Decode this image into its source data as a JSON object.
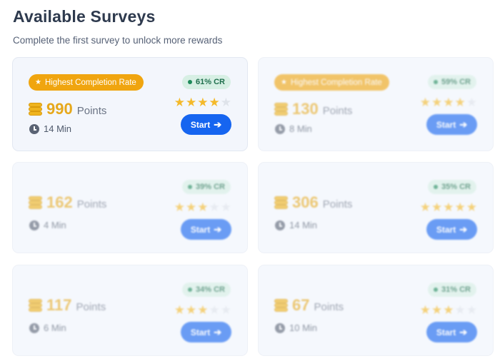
{
  "header": {
    "title": "Available Surveys",
    "subtitle": "Complete the first survey to unlock more rewards"
  },
  "colors": {
    "accent": "#1665f0",
    "badge": "#f0a50f",
    "points": "#e6a81b",
    "cr_badge_bg": "#d7efe4",
    "star": "#f4b92a"
  },
  "icons": {
    "badge": "star-icon",
    "points": "coins-icon",
    "time": "clock-icon",
    "start": "arrow-right-icon"
  },
  "surveys": [
    {
      "badge": "Highest Completion Rate",
      "points": "990",
      "points_label": "Points",
      "time": "14 Min",
      "cr": "61% CR",
      "stars": 4,
      "button": "Start",
      "locked": false
    },
    {
      "badge": "Highest Completion Rate",
      "points": "130",
      "points_label": "Points",
      "time": "8 Min",
      "cr": "59% CR",
      "stars": 4,
      "button": "Start",
      "locked": true
    },
    {
      "badge": "",
      "points": "162",
      "points_label": "Points",
      "time": "4 Min",
      "cr": "39% CR",
      "stars": 3,
      "button": "Start",
      "locked": true
    },
    {
      "badge": "",
      "points": "306",
      "points_label": "Points",
      "time": "14 Min",
      "cr": "35% CR",
      "stars": 5,
      "button": "Start",
      "locked": true
    },
    {
      "badge": "",
      "points": "117",
      "points_label": "Points",
      "time": "6 Min",
      "cr": "34% CR",
      "stars": 3,
      "button": "Start",
      "locked": true
    },
    {
      "badge": "",
      "points": "67",
      "points_label": "Points",
      "time": "10 Min",
      "cr": "31% CR",
      "stars": 3,
      "button": "Start",
      "locked": true
    }
  ]
}
